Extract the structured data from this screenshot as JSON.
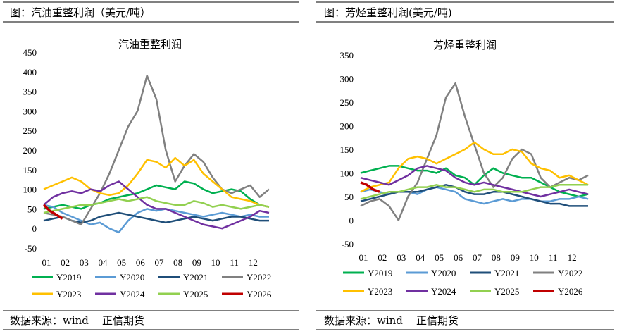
{
  "panels": [
    {
      "header": "图：汽油重整利润（美元/吨）",
      "source": "数据来源：wind    正信期货"
    },
    {
      "header": "图：芳烃重整利润(美元/吨)",
      "source": "数据来源：wind    正信期货"
    }
  ],
  "colors": {
    "Y2019": "#00b050",
    "Y2020": "#5b9bd5",
    "Y2021": "#1f4e79",
    "Y2022": "#808080",
    "Y2023": "#ffc000",
    "Y2024": "#7030a0",
    "Y2025": "#92d050",
    "Y2026": "#c00000"
  },
  "chart_data": [
    {
      "type": "line",
      "title": "汽油重整利润",
      "xlabel": "",
      "ylabel": "",
      "ylim": [
        -50,
        450
      ],
      "yticks": [
        "450",
        "400",
        "350",
        "300",
        "250",
        "200",
        "150",
        "100",
        "50",
        "0",
        "-50"
      ],
      "xticks": [
        "01",
        "02",
        "03",
        "04",
        "05",
        "06",
        "07",
        "08",
        "09",
        "10",
        "11",
        "12"
      ],
      "legend": "bottom",
      "x": [
        1,
        1.5,
        2,
        2.5,
        3,
        3.5,
        4,
        4.5,
        5,
        5.5,
        6,
        6.5,
        7,
        7.5,
        8,
        8.5,
        9,
        9.5,
        10,
        10.5,
        11,
        11.5,
        12,
        12.5,
        13
      ],
      "series": [
        {
          "name": "Y2019",
          "values": [
            50,
            55,
            60,
            55,
            50,
            60,
            65,
            75,
            80,
            85,
            90,
            100,
            110,
            105,
            100,
            120,
            115,
            100,
            90,
            95,
            100,
            95,
            75,
            60,
            55
          ]
        },
        {
          "name": "Y2020",
          "values": [
            60,
            55,
            40,
            30,
            20,
            10,
            15,
            0,
            -10,
            20,
            40,
            50,
            45,
            50,
            45,
            40,
            35,
            30,
            35,
            40,
            35,
            30,
            35,
            30,
            30
          ]
        },
        {
          "name": "Y2021",
          "values": [
            20,
            25,
            30,
            20,
            15,
            20,
            30,
            35,
            40,
            35,
            30,
            25,
            20,
            15,
            20,
            25,
            30,
            25,
            20,
            25,
            30,
            30,
            25,
            20,
            20
          ]
        },
        {
          "name": "Y2022",
          "values": [
            40,
            35,
            30,
            20,
            10,
            50,
            90,
            140,
            200,
            260,
            300,
            390,
            330,
            200,
            120,
            160,
            190,
            170,
            130,
            100,
            90,
            100,
            110,
            80,
            100
          ]
        },
        {
          "name": "Y2023",
          "values": [
            100,
            110,
            120,
            130,
            120,
            100,
            90,
            85,
            90,
            110,
            140,
            175,
            170,
            155,
            180,
            160,
            175,
            140,
            120,
            100,
            80,
            75,
            70,
            60,
            55
          ]
        },
        {
          "name": "Y2024",
          "values": [
            60,
            80,
            90,
            95,
            90,
            100,
            95,
            110,
            120,
            100,
            80,
            60,
            50,
            50,
            40,
            30,
            20,
            10,
            5,
            0,
            10,
            20,
            30,
            45,
            40
          ]
        },
        {
          "name": "Y2025",
          "values": [
            40,
            45,
            50,
            55,
            60,
            60,
            65,
            70,
            75,
            70,
            75,
            80,
            70,
            65,
            60,
            60,
            70,
            65,
            55,
            60,
            55,
            50,
            55,
            60,
            55
          ]
        },
        {
          "name": "Y2026",
          "x": [
            1,
            1.33,
            1.67,
            2
          ],
          "values": [
            60,
            45,
            35,
            25
          ]
        }
      ]
    },
    {
      "type": "line",
      "title": "芳烃重整利润",
      "xlabel": "",
      "ylabel": "",
      "ylim": [
        -50,
        350
      ],
      "yticks": [
        "350",
        "300",
        "250",
        "200",
        "150",
        "100",
        "50",
        "0",
        "-50"
      ],
      "xticks": [
        "01",
        "02",
        "03",
        "04",
        "05",
        "06",
        "07",
        "08",
        "09",
        "10",
        "11",
        "12"
      ],
      "legend": "bottom",
      "x": [
        1,
        1.5,
        2,
        2.5,
        3,
        3.5,
        4,
        4.5,
        5,
        5.5,
        6,
        6.5,
        7,
        7.5,
        8,
        8.5,
        9,
        9.5,
        10,
        10.5,
        11,
        11.5,
        12,
        12.5,
        13
      ],
      "series": [
        {
          "name": "Y2019",
          "values": [
            100,
            105,
            110,
            115,
            115,
            110,
            105,
            105,
            100,
            110,
            95,
            90,
            75,
            95,
            110,
            100,
            95,
            90,
            90,
            80,
            70,
            60,
            55,
            50,
            55
          ]
        },
        {
          "name": "Y2020",
          "values": [
            60,
            65,
            60,
            55,
            60,
            60,
            55,
            65,
            70,
            65,
            60,
            45,
            40,
            35,
            40,
            45,
            40,
            45,
            45,
            40,
            40,
            45,
            45,
            50,
            45
          ]
        },
        {
          "name": "Y2021",
          "values": [
            40,
            45,
            50,
            55,
            60,
            60,
            60,
            65,
            70,
            75,
            70,
            60,
            55,
            55,
            60,
            60,
            55,
            50,
            45,
            40,
            35,
            35,
            30,
            30,
            30
          ]
        },
        {
          "name": "Y2022",
          "values": [
            30,
            40,
            45,
            30,
            0,
            50,
            80,
            130,
            180,
            260,
            290,
            220,
            160,
            100,
            70,
            90,
            130,
            150,
            140,
            90,
            70,
            80,
            90,
            85,
            95
          ]
        },
        {
          "name": "Y2023",
          "values": [
            60,
            70,
            75,
            80,
            110,
            130,
            135,
            130,
            120,
            130,
            140,
            150,
            165,
            150,
            140,
            140,
            150,
            145,
            120,
            110,
            105,
            90,
            95,
            85,
            75
          ]
        },
        {
          "name": "Y2024",
          "values": [
            90,
            85,
            80,
            75,
            85,
            95,
            110,
            115,
            110,
            105,
            90,
            80,
            75,
            80,
            75,
            70,
            65,
            60,
            55,
            50,
            55,
            60,
            65,
            60,
            55
          ]
        },
        {
          "name": "Y2025",
          "values": [
            45,
            50,
            55,
            60,
            60,
            65,
            70,
            70,
            75,
            70,
            70,
            65,
            60,
            65,
            65,
            60,
            60,
            60,
            65,
            70,
            70,
            75,
            75,
            75,
            75
          ]
        },
        {
          "name": "Y2026",
          "x": [
            1,
            1.33,
            1.67,
            2
          ],
          "values": [
            80,
            75,
            65,
            60
          ]
        }
      ]
    }
  ]
}
